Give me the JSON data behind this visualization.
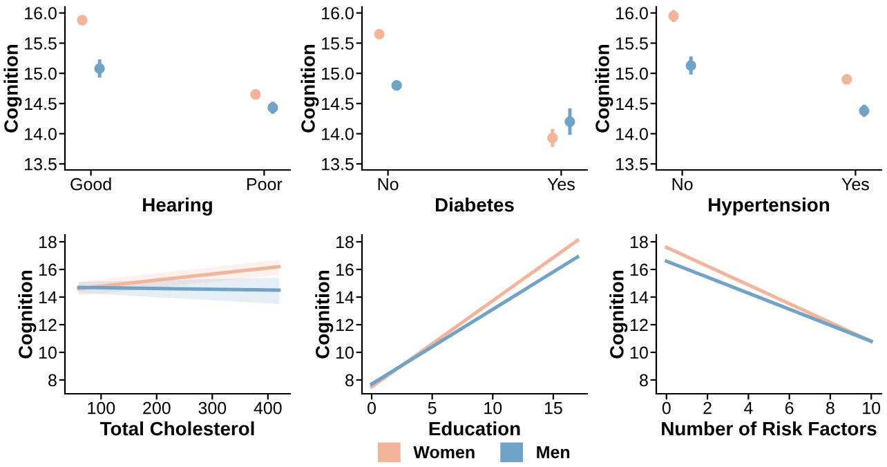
{
  "chart_data": [
    {
      "type": "scatter",
      "xlabel": "Hearing",
      "ylabel": "Cognition",
      "categories": [
        "Good",
        "Poor"
      ],
      "ylim": [
        13.4,
        16.1
      ],
      "yticks": [
        {
          "value": 13.5,
          "label": "13.5"
        },
        {
          "value": 14.0,
          "label": "14.0"
        },
        {
          "value": 14.5,
          "label": "14.5"
        },
        {
          "value": 15.0,
          "label": "15.0"
        },
        {
          "value": 15.5,
          "label": "15.5"
        },
        {
          "value": 16.0,
          "label": "16.0"
        }
      ],
      "marker": "circle",
      "series": [
        {
          "color": "#f4b49a",
          "values": [
            15.88,
            14.65
          ],
          "errors": [
            0.08,
            0.08
          ]
        },
        {
          "color": "#6fa3c8",
          "values": [
            15.08,
            14.43
          ],
          "errors": [
            0.15,
            0.1
          ]
        }
      ]
    },
    {
      "type": "scatter",
      "xlabel": "Diabetes",
      "ylabel": "Cognition",
      "categories": [
        "No",
        "Yes"
      ],
      "ylim": [
        13.4,
        16.1
      ],
      "yticks": [
        {
          "value": 13.5,
          "label": "13.5"
        },
        {
          "value": 14.0,
          "label": "14.0"
        },
        {
          "value": 14.5,
          "label": "14.5"
        },
        {
          "value": 15.0,
          "label": "15.0"
        },
        {
          "value": 15.5,
          "label": "15.5"
        },
        {
          "value": 16.0,
          "label": "16.0"
        }
      ],
      "marker": "circle",
      "series": [
        {
          "color": "#f4b49a",
          "values": [
            15.65,
            13.93
          ],
          "errors": [
            0.05,
            0.15
          ]
        },
        {
          "color": "#6fa3c8",
          "values": [
            14.8,
            14.2
          ],
          "errors": [
            0.08,
            0.22
          ]
        }
      ]
    },
    {
      "type": "scatter",
      "xlabel": "Hypertension",
      "ylabel": "Cognition",
      "categories": [
        "No",
        "Yes"
      ],
      "ylim": [
        13.4,
        16.1
      ],
      "yticks": [
        {
          "value": 13.5,
          "label": "13.5"
        },
        {
          "value": 14.0,
          "label": "14.0"
        },
        {
          "value": 14.5,
          "label": "14.5"
        },
        {
          "value": 15.0,
          "label": "15.0"
        },
        {
          "value": 15.5,
          "label": "15.5"
        },
        {
          "value": 16.0,
          "label": "16.0"
        }
      ],
      "marker": "circle",
      "series": [
        {
          "color": "#f4b49a",
          "values": [
            15.95,
            14.9
          ],
          "errors": [
            0.1,
            0.06
          ]
        },
        {
          "color": "#6fa3c8",
          "values": [
            15.13,
            14.38
          ],
          "errors": [
            0.15,
            0.1
          ]
        }
      ]
    },
    {
      "type": "line",
      "xlabel": "Total Cholesterol",
      "ylabel": "Cognition",
      "x": [
        60,
        420
      ],
      "xlim": [
        35,
        440
      ],
      "xticks": [
        100,
        200,
        300,
        400
      ],
      "ylim": [
        7,
        18.5
      ],
      "yticks": [
        8,
        10,
        12,
        14,
        16,
        18
      ],
      "series": [
        {
          "color": "#f4b49a",
          "values": [
            14.6,
            16.2
          ],
          "lower": [
            14.1,
            15.6
          ],
          "upper": [
            15.1,
            16.7
          ]
        },
        {
          "color": "#6fa3c8",
          "values": [
            14.7,
            14.5
          ],
          "lower": [
            14.3,
            13.5
          ],
          "upper": [
            15.1,
            15.4
          ]
        }
      ]
    },
    {
      "type": "line",
      "xlabel": "Education",
      "ylabel": "Cognition",
      "x": [
        0,
        17
      ],
      "xlim": [
        -0.8,
        17.8
      ],
      "xticks": [
        0,
        5,
        10,
        15
      ],
      "ylim": [
        7,
        18.5
      ],
      "yticks": [
        8,
        10,
        12,
        14,
        16,
        18
      ],
      "legend": "bottom",
      "series": [
        {
          "name": "Women",
          "color": "#f4b49a",
          "values": [
            7.5,
            18.1
          ]
        },
        {
          "name": "Men",
          "color": "#6fa3c8",
          "values": [
            7.7,
            16.9
          ]
        }
      ]
    },
    {
      "type": "line",
      "xlabel": "Number of Risk Factors",
      "ylabel": "Cognition",
      "x": [
        0,
        10
      ],
      "xlim": [
        -0.5,
        10.5
      ],
      "xticks": [
        0,
        2,
        4,
        6,
        8,
        10
      ],
      "ylim": [
        7,
        18.5
      ],
      "yticks": [
        8,
        10,
        12,
        14,
        16,
        18
      ],
      "series": [
        {
          "color": "#f4b49a",
          "values": [
            17.6,
            10.8
          ]
        },
        {
          "color": "#6fa3c8",
          "values": [
            16.6,
            10.8
          ]
        }
      ]
    }
  ]
}
